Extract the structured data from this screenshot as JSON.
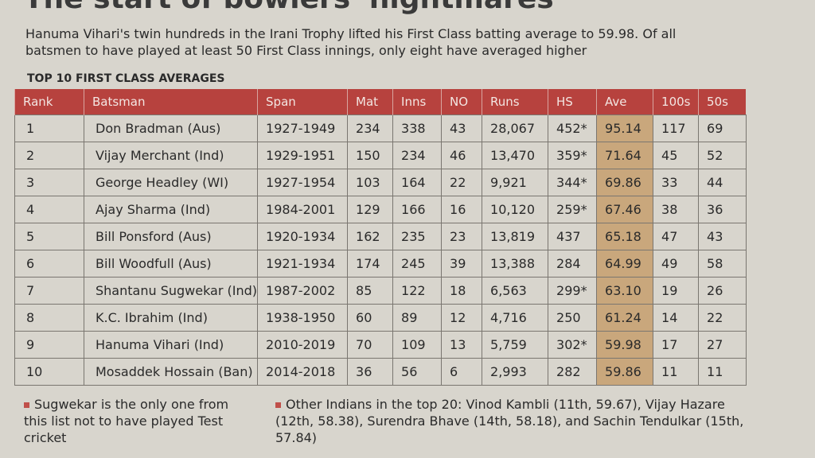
{
  "header": {
    "title": "The start of bowlers' nightmares",
    "intro": "Hanuma Vihari's twin hundreds in the Irani Trophy lifted his First Class batting average to 59.98. Of all batsmen to have played at least 50 First Class innings, only eight have averaged higher"
  },
  "table": {
    "caption": "TOP 10 FIRST CLASS AVERAGES",
    "columns": [
      "Rank",
      "Batsman",
      "Span",
      "Mat",
      "Inns",
      "NO",
      "Runs",
      "HS",
      "Ave",
      "100s",
      "50s"
    ],
    "rows": [
      [
        "1",
        "Don Bradman (Aus)",
        "1927-1949",
        "234",
        "338",
        "43",
        "28,067",
        "452*",
        "95.14",
        "117",
        "69"
      ],
      [
        "2",
        "Vijay Merchant (Ind)",
        "1929-1951",
        "150",
        "234",
        "46",
        "13,470",
        "359*",
        "71.64",
        "45",
        "52"
      ],
      [
        "3",
        "George Headley (WI)",
        "1927-1954",
        "103",
        "164",
        "22",
        "9,921",
        "344*",
        "69.86",
        "33",
        "44"
      ],
      [
        "4",
        "Ajay Sharma (Ind)",
        "1984-2001",
        "129",
        "166",
        "16",
        "10,120",
        "259*",
        "67.46",
        "38",
        "36"
      ],
      [
        "5",
        "Bill Ponsford (Aus)",
        "1920-1934",
        "162",
        "235",
        "23",
        "13,819",
        "437",
        "65.18",
        "47",
        "43"
      ],
      [
        "6",
        "Bill Woodfull (Aus)",
        "1921-1934",
        "174",
        "245",
        "39",
        "13,388",
        "284",
        "64.99",
        "49",
        "58"
      ],
      [
        "7",
        "Shantanu Sugwekar (Ind)",
        "1987-2002",
        "85",
        "122",
        "18",
        "6,563",
        "299*",
        "63.10",
        "19",
        "26"
      ],
      [
        "8",
        "K.C. Ibrahim (Ind)",
        "1938-1950",
        "60",
        "89",
        "12",
        "4,716",
        "250",
        "61.24",
        "14",
        "22"
      ],
      [
        "9",
        "Hanuma Vihari (Ind)",
        "2010-2019",
        "70",
        "109",
        "13",
        "5,759",
        "302*",
        "59.98",
        "17",
        "27"
      ],
      [
        "10",
        "Mosaddek Hossain (Ban)",
        "2014-2018",
        "36",
        "56",
        "6",
        "2,993",
        "282",
        "59.86",
        "11",
        "11"
      ]
    ]
  },
  "notes": [
    "Sugwekar is the only one from this list not to have played Test cricket",
    "Other Indians in the top 20: Vinod Kambli (11th, 59.67), Vijay Hazare (12th, 58.38), Surendra Bhave (14th, 58.18), and Sachin Tendulkar (15th, 57.84)"
  ]
}
